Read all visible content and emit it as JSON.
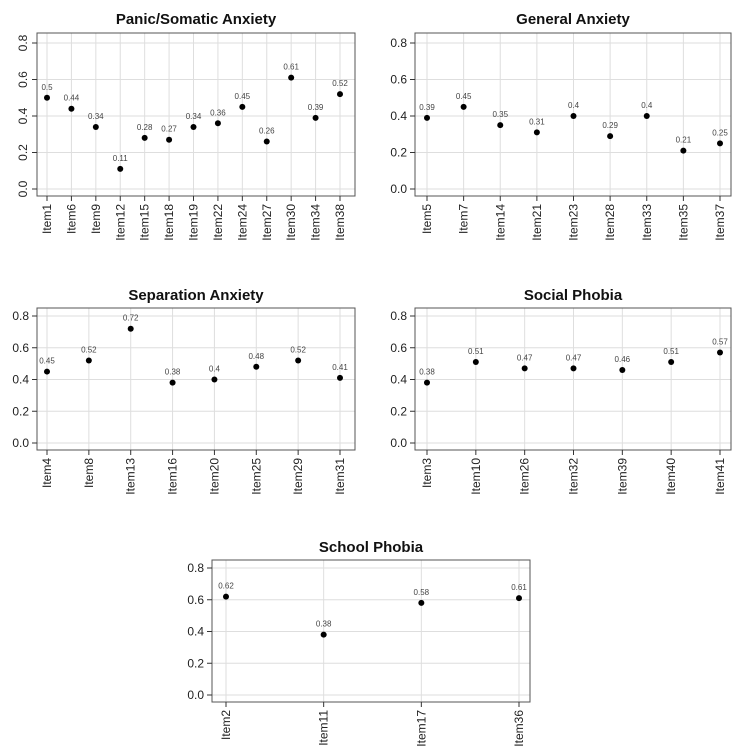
{
  "chart_data": [
    {
      "type": "scatter",
      "title": "Panic/Somatic Anxiety",
      "categories": [
        "Item1",
        "Item6",
        "Item9",
        "Item12",
        "Item15",
        "Item18",
        "Item19",
        "Item22",
        "Item24",
        "Item27",
        "Item30",
        "Item34",
        "Item38"
      ],
      "values": [
        0.5,
        0.44,
        0.34,
        0.11,
        0.28,
        0.27,
        0.34,
        0.36,
        0.45,
        0.26,
        0.61,
        0.39,
        0.52
      ],
      "ylim": [
        0,
        0.8
      ],
      "yticks": [
        "0.0",
        "0.2",
        "0.4",
        "0.6",
        "0.8"
      ],
      "ytick_rotation": "vertical",
      "grid": true,
      "xlabel": "",
      "ylabel": ""
    },
    {
      "type": "scatter",
      "title": "General Anxiety",
      "categories": [
        "Item5",
        "Item7",
        "Item14",
        "Item21",
        "Item23",
        "Item28",
        "Item33",
        "Item35",
        "Item37"
      ],
      "values": [
        0.39,
        0.45,
        0.35,
        0.31,
        0.4,
        0.29,
        0.4,
        0.21,
        0.25
      ],
      "ylim": [
        0,
        0.8
      ],
      "yticks": [
        "0.0",
        "0.2",
        "0.4",
        "0.6",
        "0.8"
      ],
      "ytick_rotation": "horizontal",
      "grid": true,
      "xlabel": "",
      "ylabel": ""
    },
    {
      "type": "scatter",
      "title": "Separation Anxiety",
      "categories": [
        "Item4",
        "Item8",
        "Item13",
        "Item16",
        "Item20",
        "Item25",
        "Item29",
        "Item31"
      ],
      "values": [
        0.45,
        0.52,
        0.72,
        0.38,
        0.4,
        0.48,
        0.52,
        0.41
      ],
      "ylim": [
        0,
        0.8
      ],
      "yticks": [
        "0.0",
        "0.2",
        "0.4",
        "0.6",
        "0.8"
      ],
      "ytick_rotation": "horizontal",
      "grid": true,
      "xlabel": "",
      "ylabel": ""
    },
    {
      "type": "scatter",
      "title": "Social Phobia",
      "categories": [
        "Item3",
        "Item10",
        "Item26",
        "Item32",
        "Item39",
        "Item40",
        "Item41"
      ],
      "values": [
        0.38,
        0.51,
        0.47,
        0.47,
        0.46,
        0.51,
        0.57
      ],
      "ylim": [
        0,
        0.8
      ],
      "yticks": [
        "0.0",
        "0.2",
        "0.4",
        "0.6",
        "0.8"
      ],
      "ytick_rotation": "horizontal",
      "grid": true,
      "xlabel": "",
      "ylabel": ""
    },
    {
      "type": "scatter",
      "title": "School Phobia",
      "categories": [
        "Item2",
        "Item11",
        "Item17",
        "Item36"
      ],
      "values": [
        0.62,
        0.38,
        0.58,
        0.61
      ],
      "ylim": [
        0,
        0.8
      ],
      "yticks": [
        "0.0",
        "0.2",
        "0.4",
        "0.6",
        "0.8"
      ],
      "ytick_rotation": "horizontal",
      "grid": true,
      "xlabel": "",
      "ylabel": ""
    }
  ]
}
